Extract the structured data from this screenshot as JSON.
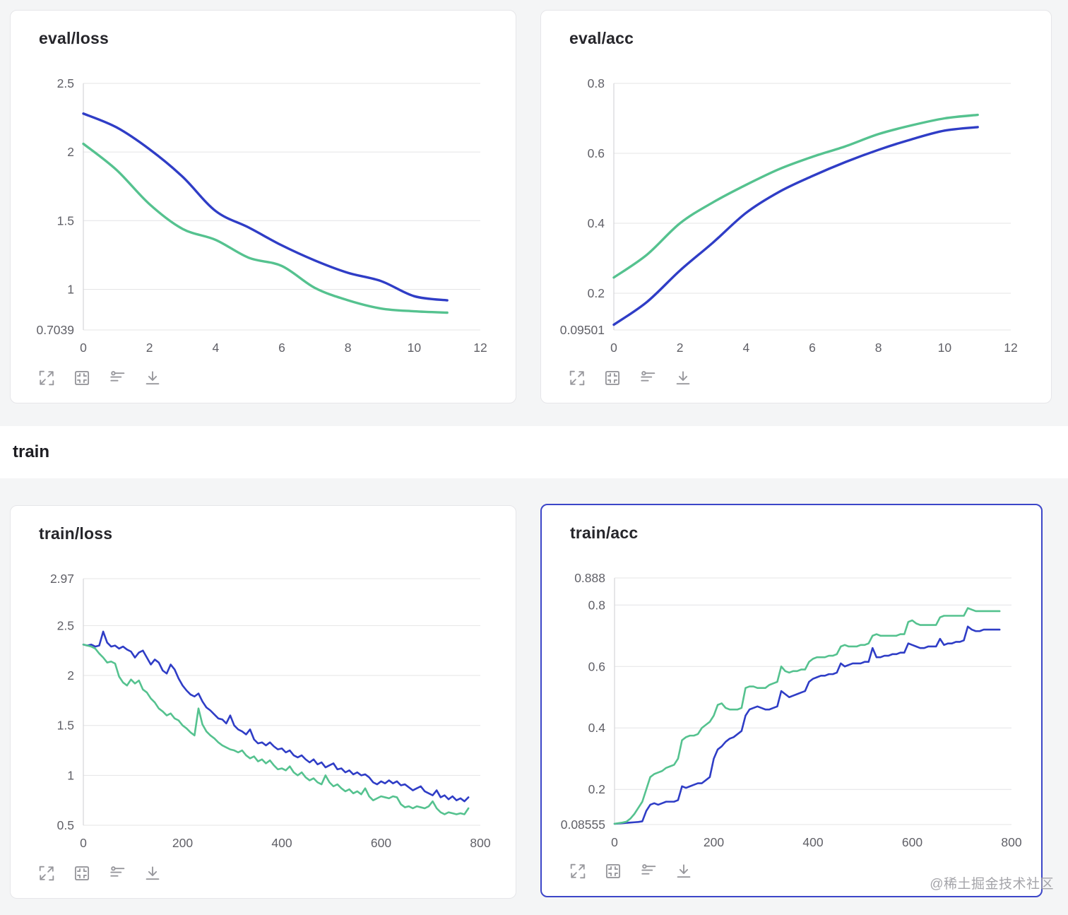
{
  "colors": {
    "blue": "#2f3dc6",
    "green": "#55c28f",
    "selected_border": "#3c46c8",
    "gridline": "#e4e4e6",
    "axis_line": "#d6d6d9",
    "tick_label": "#606067",
    "icon": "#97979c"
  },
  "section": {
    "title": "train"
  },
  "watermark": {
    "text": "@稀土掘金技术社区"
  },
  "toolbar": {
    "buttons": [
      {
        "name": "fullscreen",
        "icon": "expand-icon"
      },
      {
        "name": "fit-view",
        "icon": "fit-frame-icon"
      },
      {
        "name": "settings",
        "icon": "tune-icon"
      },
      {
        "name": "download",
        "icon": "download-icon"
      }
    ]
  },
  "chart_data": [
    {
      "type": "line",
      "title": "eval/loss",
      "selected": false,
      "grid": true,
      "legend": "none",
      "x_range": [
        0,
        12
      ],
      "x_ticks": [
        0,
        2,
        4,
        6,
        8,
        10,
        12
      ],
      "y_range": [
        0.7039,
        2.5
      ],
      "y_tick_values": [
        2.5,
        2,
        1.5,
        1,
        0.7039
      ],
      "y_tick_labels": [
        "2.5",
        "2",
        "1.5",
        "1",
        "0.7039"
      ],
      "x": [
        0,
        1,
        2,
        3,
        4,
        5,
        6,
        7,
        8,
        9,
        10,
        11
      ],
      "series": [
        {
          "name": "blue-series",
          "color": "blue",
          "y": [
            2.28,
            2.18,
            2.02,
            1.82,
            1.57,
            1.45,
            1.32,
            1.21,
            1.12,
            1.06,
            0.95,
            0.92
          ]
        },
        {
          "name": "green-series",
          "color": "green",
          "y": [
            2.06,
            1.87,
            1.62,
            1.44,
            1.36,
            1.23,
            1.17,
            1.01,
            0.92,
            0.86,
            0.84,
            0.83
          ]
        }
      ]
    },
    {
      "type": "line",
      "title": "eval/acc",
      "selected": false,
      "grid": true,
      "legend": "none",
      "x_range": [
        0,
        12
      ],
      "x_ticks": [
        0,
        2,
        4,
        6,
        8,
        10,
        12
      ],
      "y_range": [
        0.09501,
        0.8
      ],
      "y_tick_values": [
        0.8,
        0.6,
        0.4,
        0.2,
        0.09501
      ],
      "y_tick_labels": [
        "0.8",
        "0.6",
        "0.4",
        "0.2",
        "0.09501"
      ],
      "x": [
        0,
        1,
        2,
        3,
        4,
        5,
        6,
        7,
        8,
        9,
        10,
        11
      ],
      "series": [
        {
          "name": "blue-series",
          "color": "blue",
          "y": [
            0.11,
            0.175,
            0.265,
            0.345,
            0.43,
            0.49,
            0.535,
            0.575,
            0.61,
            0.64,
            0.665,
            0.675
          ]
        },
        {
          "name": "green-series",
          "color": "green",
          "y": [
            0.245,
            0.31,
            0.4,
            0.46,
            0.51,
            0.555,
            0.59,
            0.62,
            0.655,
            0.68,
            0.7,
            0.71
          ]
        }
      ]
    },
    {
      "type": "line",
      "title": "train/loss",
      "selected": false,
      "grid": true,
      "legend": "none",
      "x_range": [
        0,
        800
      ],
      "x_ticks": [
        0,
        200,
        400,
        600,
        800
      ],
      "y_range": [
        0.5,
        2.97
      ],
      "y_tick_values": [
        2.97,
        2.5,
        2,
        1.5,
        1,
        0.5
      ],
      "y_tick_labels": [
        "2.97",
        "2.5",
        "2",
        "1.5",
        "1",
        "0.5"
      ],
      "x": [
        0,
        8,
        16,
        24,
        32,
        40,
        48,
        56,
        64,
        72,
        80,
        88,
        96,
        104,
        112,
        120,
        128,
        136,
        144,
        152,
        160,
        168,
        176,
        184,
        192,
        200,
        208,
        216,
        224,
        232,
        240,
        248,
        256,
        264,
        272,
        280,
        288,
        296,
        304,
        312,
        320,
        328,
        336,
        344,
        352,
        360,
        368,
        376,
        384,
        392,
        400,
        408,
        416,
        424,
        432,
        440,
        448,
        456,
        464,
        472,
        480,
        488,
        496,
        504,
        512,
        520,
        528,
        536,
        544,
        552,
        560,
        568,
        576,
        584,
        592,
        600,
        608,
        616,
        624,
        632,
        640,
        648,
        656,
        664,
        672,
        680,
        688,
        696,
        704,
        712,
        720,
        728,
        736,
        744,
        752,
        760,
        768,
        776
      ],
      "series": [
        {
          "name": "blue-series",
          "color": "blue",
          "y": [
            2.31,
            2.3,
            2.31,
            2.29,
            2.3,
            2.44,
            2.33,
            2.29,
            2.3,
            2.27,
            2.29,
            2.26,
            2.24,
            2.18,
            2.23,
            2.25,
            2.18,
            2.11,
            2.16,
            2.13,
            2.05,
            2.02,
            2.11,
            2.06,
            1.97,
            1.9,
            1.85,
            1.81,
            1.79,
            1.82,
            1.74,
            1.68,
            1.65,
            1.61,
            1.57,
            1.56,
            1.52,
            1.6,
            1.5,
            1.46,
            1.44,
            1.41,
            1.46,
            1.36,
            1.32,
            1.33,
            1.3,
            1.33,
            1.29,
            1.26,
            1.27,
            1.23,
            1.25,
            1.2,
            1.18,
            1.2,
            1.16,
            1.13,
            1.16,
            1.11,
            1.13,
            1.08,
            1.1,
            1.12,
            1.06,
            1.07,
            1.03,
            1.05,
            1.01,
            1.03,
            1.0,
            1.01,
            0.98,
            0.93,
            0.91,
            0.94,
            0.92,
            0.95,
            0.92,
            0.94,
            0.9,
            0.91,
            0.88,
            0.85,
            0.87,
            0.89,
            0.84,
            0.82,
            0.8,
            0.85,
            0.78,
            0.8,
            0.76,
            0.79,
            0.75,
            0.77,
            0.74,
            0.78
          ]
        },
        {
          "name": "green-series",
          "color": "green",
          "y": [
            2.31,
            2.3,
            2.29,
            2.27,
            2.22,
            2.18,
            2.13,
            2.14,
            2.12,
            1.99,
            1.93,
            1.9,
            1.96,
            1.92,
            1.95,
            1.86,
            1.83,
            1.77,
            1.73,
            1.67,
            1.64,
            1.6,
            1.62,
            1.57,
            1.55,
            1.5,
            1.47,
            1.43,
            1.4,
            1.67,
            1.51,
            1.44,
            1.4,
            1.37,
            1.33,
            1.3,
            1.28,
            1.26,
            1.25,
            1.23,
            1.25,
            1.2,
            1.17,
            1.19,
            1.14,
            1.16,
            1.12,
            1.15,
            1.1,
            1.06,
            1.07,
            1.05,
            1.09,
            1.03,
            1.0,
            1.03,
            0.98,
            0.95,
            0.97,
            0.93,
            0.91,
            1.0,
            0.93,
            0.89,
            0.91,
            0.87,
            0.84,
            0.86,
            0.82,
            0.84,
            0.81,
            0.87,
            0.79,
            0.75,
            0.77,
            0.79,
            0.78,
            0.77,
            0.79,
            0.78,
            0.71,
            0.68,
            0.69,
            0.67,
            0.69,
            0.68,
            0.67,
            0.69,
            0.74,
            0.67,
            0.63,
            0.61,
            0.63,
            0.62,
            0.61,
            0.62,
            0.61,
            0.67
          ]
        }
      ]
    },
    {
      "type": "line",
      "title": "train/acc",
      "selected": true,
      "grid": true,
      "legend": "none",
      "x_range": [
        0,
        800
      ],
      "x_ticks": [
        0,
        200,
        400,
        600,
        800
      ],
      "y_range": [
        0.08555,
        0.888
      ],
      "y_tick_values": [
        0.888,
        0.8,
        0.6,
        0.4,
        0.2,
        0.08555
      ],
      "y_tick_labels": [
        "0.888",
        "0.8",
        "0.6",
        "0.4",
        "0.2",
        "0.08555"
      ],
      "x": [
        0,
        8,
        16,
        24,
        32,
        40,
        48,
        56,
        64,
        72,
        80,
        88,
        96,
        104,
        112,
        120,
        128,
        136,
        144,
        152,
        160,
        168,
        176,
        184,
        192,
        200,
        208,
        216,
        224,
        232,
        240,
        248,
        256,
        264,
        272,
        280,
        288,
        296,
        304,
        312,
        320,
        328,
        336,
        344,
        352,
        360,
        368,
        376,
        384,
        392,
        400,
        408,
        416,
        424,
        432,
        440,
        448,
        456,
        464,
        472,
        480,
        488,
        496,
        504,
        512,
        520,
        528,
        536,
        544,
        552,
        560,
        568,
        576,
        584,
        592,
        600,
        608,
        616,
        624,
        632,
        640,
        648,
        656,
        664,
        672,
        680,
        688,
        696,
        704,
        712,
        720,
        728,
        736,
        744,
        752,
        760,
        768,
        776
      ],
      "series": [
        {
          "name": "blue-series",
          "color": "blue",
          "y": [
            0.088,
            0.089,
            0.09,
            0.091,
            0.092,
            0.093,
            0.094,
            0.096,
            0.13,
            0.15,
            0.155,
            0.15,
            0.155,
            0.16,
            0.16,
            0.16,
            0.165,
            0.21,
            0.205,
            0.21,
            0.215,
            0.22,
            0.22,
            0.23,
            0.24,
            0.3,
            0.33,
            0.34,
            0.355,
            0.365,
            0.37,
            0.38,
            0.39,
            0.44,
            0.46,
            0.465,
            0.47,
            0.465,
            0.46,
            0.46,
            0.465,
            0.47,
            0.52,
            0.51,
            0.5,
            0.505,
            0.51,
            0.515,
            0.52,
            0.55,
            0.56,
            0.565,
            0.57,
            0.57,
            0.575,
            0.575,
            0.58,
            0.61,
            0.6,
            0.605,
            0.61,
            0.61,
            0.61,
            0.615,
            0.615,
            0.66,
            0.63,
            0.63,
            0.635,
            0.635,
            0.64,
            0.64,
            0.645,
            0.645,
            0.675,
            0.67,
            0.665,
            0.66,
            0.66,
            0.665,
            0.665,
            0.665,
            0.69,
            0.67,
            0.675,
            0.675,
            0.68,
            0.68,
            0.685,
            0.73,
            0.72,
            0.715,
            0.715,
            0.72,
            0.72,
            0.72,
            0.72,
            0.72
          ]
        },
        {
          "name": "green-series",
          "color": "green",
          "y": [
            0.088,
            0.09,
            0.092,
            0.095,
            0.105,
            0.12,
            0.14,
            0.16,
            0.2,
            0.24,
            0.25,
            0.255,
            0.26,
            0.27,
            0.275,
            0.28,
            0.3,
            0.36,
            0.37,
            0.375,
            0.375,
            0.38,
            0.4,
            0.41,
            0.42,
            0.44,
            0.475,
            0.48,
            0.465,
            0.46,
            0.46,
            0.46,
            0.465,
            0.53,
            0.535,
            0.535,
            0.53,
            0.53,
            0.53,
            0.54,
            0.545,
            0.55,
            0.6,
            0.585,
            0.58,
            0.585,
            0.585,
            0.59,
            0.59,
            0.615,
            0.625,
            0.63,
            0.63,
            0.63,
            0.635,
            0.635,
            0.64,
            0.665,
            0.67,
            0.665,
            0.665,
            0.665,
            0.67,
            0.67,
            0.675,
            0.7,
            0.705,
            0.7,
            0.7,
            0.7,
            0.7,
            0.7,
            0.705,
            0.705,
            0.745,
            0.75,
            0.74,
            0.735,
            0.735,
            0.735,
            0.735,
            0.735,
            0.76,
            0.765,
            0.765,
            0.765,
            0.765,
            0.765,
            0.765,
            0.79,
            0.785,
            0.78,
            0.78,
            0.78,
            0.78,
            0.78,
            0.78,
            0.78
          ]
        }
      ]
    }
  ]
}
